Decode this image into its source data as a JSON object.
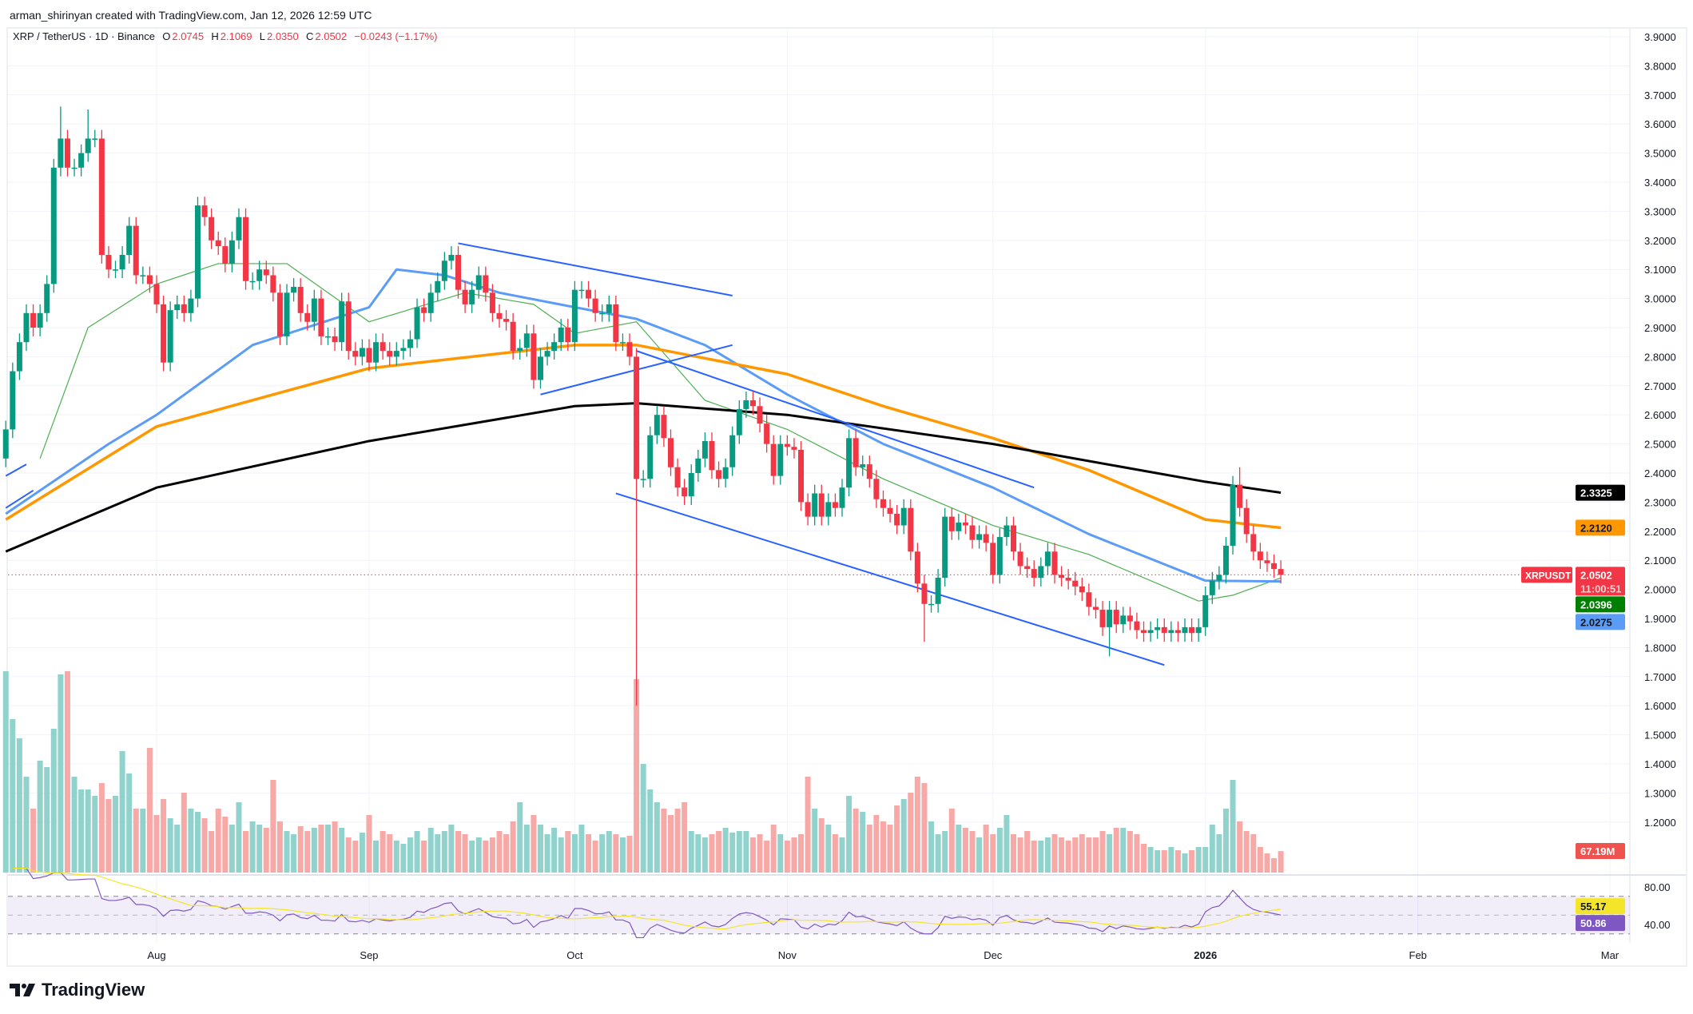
{
  "credit": "arman_shirinyan created with TradingView.com, Jan 12, 2026 12:59 UTC",
  "legend": {
    "symbol": "XRP / TetherUS · 1D · Binance",
    "o_label": "O",
    "o": "2.0745",
    "h_label": "H",
    "h": "2.1069",
    "l_label": "L",
    "l": "2.0350",
    "c_label": "C",
    "c": "2.0502",
    "change": "−0.0243 (−1.17%)"
  },
  "logo": {
    "text": "TradingView",
    "icon": "tradingview-logo-icon"
  },
  "colors": {
    "up": "#089981",
    "down": "#f23645",
    "up_volume": "#92d2cc",
    "down_volume": "#f7a9a7",
    "ma20": "#4caf50",
    "ma50": "#5b9cf6",
    "ma100": "#ff9800",
    "ma200": "#000000",
    "trendline": "#2962ff",
    "rsi": "#7e57c2",
    "rsi_ma": "#f5e52a"
  },
  "chart_data": {
    "type": "candlestick",
    "symbol": "XRPUSDT",
    "ylim": [
      1.15,
      3.95
    ],
    "price_ticks": [
      "1.2000",
      "1.3000",
      "1.4000",
      "1.5000",
      "1.6000",
      "1.7000",
      "1.8000",
      "1.9000",
      "2.0000",
      "2.1000",
      "2.2000",
      "2.3000",
      "2.4000",
      "2.5000",
      "2.6000",
      "2.7000",
      "2.8000",
      "2.9000",
      "3.0000",
      "3.1000",
      "3.2000",
      "3.3000",
      "3.4000",
      "3.5000",
      "3.6000",
      "3.7000",
      "3.8000",
      "3.9000"
    ],
    "time_ticks": [
      {
        "label": "Aug",
        "date": "2025-08-01"
      },
      {
        "label": "Sep",
        "date": "2025-09-01"
      },
      {
        "label": "Oct",
        "date": "2025-10-01"
      },
      {
        "label": "Nov",
        "date": "2025-11-01"
      },
      {
        "label": "Dec",
        "date": "2025-12-01"
      },
      {
        "label": "2026",
        "date": "2026-01-01",
        "bold": true
      },
      {
        "label": "Feb",
        "date": "2026-02-01"
      },
      {
        "label": "Mar",
        "date": "2026-03-01"
      }
    ],
    "closes": [
      {
        "month": "2025-07",
        "from_day": 10,
        "values": [
          2.55,
          2.75,
          2.85,
          2.95,
          2.9,
          2.95,
          3.05,
          3.45,
          3.55,
          3.45,
          3.45,
          3.5,
          3.55,
          3.55,
          3.15,
          3.1,
          3.1,
          3.15,
          3.25,
          3.08,
          3.08,
          3.05
        ]
      },
      {
        "month": "2025-08",
        "from_day": 1,
        "values": [
          2.98,
          2.78,
          2.96,
          2.98,
          2.95,
          3.0,
          3.32,
          3.28,
          3.2,
          3.18,
          3.12,
          3.2,
          3.28,
          3.06,
          3.06,
          3.1,
          3.08,
          3.02,
          2.87,
          3.02,
          3.04,
          2.95,
          2.92,
          3.0,
          2.87,
          2.87,
          2.85,
          2.99,
          2.82,
          2.8,
          2.83
        ]
      },
      {
        "month": "2025-09",
        "from_day": 1,
        "values": [
          2.78,
          2.85,
          2.82,
          2.8,
          2.82,
          2.83,
          2.86,
          2.97,
          2.95,
          3.02,
          3.06,
          3.13,
          3.15,
          3.03,
          2.98,
          3.03,
          3.08,
          3.02,
          2.95,
          2.93,
          2.92,
          2.82,
          2.83,
          2.88,
          2.72,
          2.8,
          2.82,
          2.85,
          2.9,
          2.85
        ]
      },
      {
        "month": "2025-10",
        "from_day": 1,
        "values": [
          3.03,
          3.03,
          3.0,
          2.95,
          2.95,
          2.98,
          2.85,
          2.85,
          2.8,
          2.38,
          2.38,
          2.53,
          2.6,
          2.52,
          2.42,
          2.35,
          2.32,
          2.4,
          2.45,
          2.51,
          2.41,
          2.38,
          2.42,
          2.53,
          2.62,
          2.65,
          2.63,
          2.57,
          2.5,
          2.39,
          2.5
        ]
      },
      {
        "month": "2025-11",
        "from_day": 1,
        "values": [
          2.49,
          2.48,
          2.3,
          2.25,
          2.33,
          2.25,
          2.3,
          2.28,
          2.35,
          2.52,
          2.42,
          2.43,
          2.38,
          2.31,
          2.28,
          2.26,
          2.22,
          2.28,
          2.13,
          2.02,
          1.95,
          1.95,
          2.04,
          2.25,
          2.2,
          2.23,
          2.22,
          2.17,
          2.19,
          2.16
        ]
      },
      {
        "month": "2025-12",
        "from_day": 1,
        "values": [
          2.05,
          2.18,
          2.22,
          2.13,
          2.08,
          2.07,
          2.04,
          2.08,
          2.13,
          2.05,
          2.04,
          2.03,
          2.01,
          1.99,
          1.94,
          1.93,
          1.87,
          1.93,
          1.88,
          1.91,
          1.89,
          1.86,
          1.85,
          1.86,
          1.87,
          1.85,
          1.86,
          1.85,
          1.87,
          1.85,
          1.87
        ]
      },
      {
        "month": "2026-01",
        "from_day": 1,
        "values": [
          1.98,
          2.03,
          2.05,
          2.15,
          2.36,
          2.28,
          2.19,
          2.13,
          2.1,
          2.09,
          2.07,
          2.0502
        ]
      }
    ],
    "first_open": 2.45,
    "wicks": [
      {
        "date": "2025-07-18",
        "high": 3.66
      },
      {
        "date": "2025-07-22",
        "high": 3.65
      },
      {
        "date": "2025-10-10",
        "low": 1.6
      },
      {
        "date": "2025-11-21",
        "low": 1.82
      },
      {
        "date": "2025-12-18",
        "low": 1.77
      },
      {
        "date": "2026-01-06",
        "high": 2.42
      }
    ],
    "volume_millions": [
      {
        "month": "2025-07",
        "from_day": 10,
        "values": [
          630,
          480,
          420,
          300,
          200,
          350,
          330,
          450,
          620,
          630,
          300,
          260,
          260,
          240,
          280,
          230,
          240,
          380,
          310,
          200,
          200,
          390
        ]
      },
      {
        "month": "2025-08",
        "from_day": 1,
        "values": [
          180,
          230,
          170,
          150,
          250,
          200,
          190,
          170,
          130,
          200,
          175,
          150,
          220,
          130,
          160,
          150,
          140,
          290,
          160,
          130,
          120,
          145,
          130,
          140,
          150,
          150,
          160,
          140,
          110,
          100,
          125
        ]
      },
      {
        "month": "2025-09",
        "from_day": 1,
        "values": [
          180,
          100,
          130,
          120,
          100,
          90,
          110,
          130,
          100,
          140,
          120,
          130,
          150,
          130,
          120,
          100,
          110,
          100,
          110,
          130,
          120,
          160,
          220,
          150,
          180,
          150,
          120,
          140,
          110,
          130
        ]
      },
      {
        "month": "2025-10",
        "from_day": 1,
        "values": [
          120,
          150,
          120,
          100,
          120,
          130,
          120,
          110,
          115,
          605,
          340,
          260,
          220,
          200,
          180,
          200,
          220,
          130,
          120,
          110,
          120,
          130,
          140,
          125,
          130,
          130,
          110,
          120,
          100,
          150,
          120
        ]
      },
      {
        "month": "2025-11",
        "from_day": 1,
        "values": [
          100,
          110,
          120,
          300,
          200,
          170,
          150,
          120,
          110,
          240,
          200,
          190,
          150,
          180,
          160,
          150,
          210,
          230,
          250,
          300,
          280,
          160,
          120,
          130,
          200,
          150,
          140,
          130,
          110,
          150
        ]
      },
      {
        "month": "2025-12",
        "from_day": 1,
        "values": [
          120,
          140,
          180,
          120,
          110,
          130,
          100,
          100,
          110,
          120,
          110,
          100,
          110,
          120,
          110,
          110,
          130,
          120,
          140,
          140,
          130,
          120,
          90,
          80,
          70,
          70,
          80,
          70,
          60,
          70,
          80
        ]
      },
      {
        "month": "2026-01",
        "from_day": 1,
        "values": [
          80,
          150,
          120,
          200,
          290,
          160,
          130,
          120,
          80,
          60,
          45,
          67.19
        ]
      }
    ],
    "moving_averages": [
      {
        "key": "ma20",
        "points": [
          [
            "2025-07-15",
            2.45
          ],
          [
            "2025-07-22",
            2.9
          ],
          [
            "2025-08-01",
            3.05
          ],
          [
            "2025-08-10",
            3.12
          ],
          [
            "2025-08-20",
            3.12
          ],
          [
            "2025-09-01",
            2.92
          ],
          [
            "2025-09-15",
            3.02
          ],
          [
            "2025-09-25",
            2.98
          ],
          [
            "2025-10-01",
            2.88
          ],
          [
            "2025-10-10",
            2.92
          ],
          [
            "2025-10-20",
            2.65
          ],
          [
            "2025-11-01",
            2.55
          ],
          [
            "2025-11-15",
            2.38
          ],
          [
            "2025-12-01",
            2.22
          ],
          [
            "2025-12-15",
            2.12
          ],
          [
            "2025-12-31",
            1.96
          ],
          [
            "2026-01-05",
            1.98
          ],
          [
            "2026-01-12",
            2.0396
          ]
        ]
      },
      {
        "key": "ma50",
        "points": [
          [
            "2025-07-10",
            2.26
          ],
          [
            "2025-07-25",
            2.5
          ],
          [
            "2025-08-01",
            2.6
          ],
          [
            "2025-08-15",
            2.84
          ],
          [
            "2025-09-01",
            2.97
          ],
          [
            "2025-09-05",
            3.1
          ],
          [
            "2025-09-12",
            3.08
          ],
          [
            "2025-09-20",
            3.02
          ],
          [
            "2025-10-01",
            2.97
          ],
          [
            "2025-10-10",
            2.93
          ],
          [
            "2025-10-20",
            2.84
          ],
          [
            "2025-11-01",
            2.67
          ],
          [
            "2025-11-15",
            2.5
          ],
          [
            "2025-12-01",
            2.35
          ],
          [
            "2025-12-15",
            2.19
          ],
          [
            "2026-01-01",
            2.03
          ],
          [
            "2026-01-12",
            2.0275
          ]
        ]
      },
      {
        "key": "ma100",
        "points": [
          [
            "2025-07-10",
            2.24
          ],
          [
            "2025-08-01",
            2.56
          ],
          [
            "2025-09-01",
            2.76
          ],
          [
            "2025-10-01",
            2.84
          ],
          [
            "2025-10-10",
            2.84
          ],
          [
            "2025-11-01",
            2.74
          ],
          [
            "2025-11-15",
            2.63
          ],
          [
            "2025-12-01",
            2.52
          ],
          [
            "2025-12-15",
            2.41
          ],
          [
            "2026-01-01",
            2.24
          ],
          [
            "2026-01-12",
            2.212
          ]
        ]
      },
      {
        "key": "ma200",
        "points": [
          [
            "2025-07-10",
            2.13
          ],
          [
            "2025-08-01",
            2.35
          ],
          [
            "2025-09-01",
            2.51
          ],
          [
            "2025-10-01",
            2.63
          ],
          [
            "2025-10-10",
            2.64
          ],
          [
            "2025-11-01",
            2.6
          ],
          [
            "2025-12-01",
            2.5
          ],
          [
            "2026-01-01",
            2.37
          ],
          [
            "2026-01-12",
            2.3325
          ]
        ]
      }
    ],
    "trendlines": [
      [
        [
          "2025-07-10",
          2.39
        ],
        [
          "2025-07-13",
          2.43
        ]
      ],
      [
        [
          "2025-07-10",
          2.28
        ],
        [
          "2025-07-14",
          2.34
        ]
      ],
      [
        [
          "2025-09-14",
          3.19
        ],
        [
          "2025-10-24",
          3.01
        ]
      ],
      [
        [
          "2025-09-26",
          2.67
        ],
        [
          "2025-10-24",
          2.84
        ]
      ],
      [
        [
          "2025-10-10",
          2.82
        ],
        [
          "2025-12-07",
          2.35
        ]
      ],
      [
        [
          "2025-10-07",
          2.33
        ],
        [
          "2025-12-26",
          1.74
        ]
      ]
    ],
    "price_badges": [
      {
        "key": "ma200",
        "value": "2.3325",
        "bg": "#000000",
        "fg": "#ffffff"
      },
      {
        "key": "ma100",
        "value": "2.2120",
        "bg": "#ff9800",
        "fg": "#131722"
      },
      {
        "key": "last",
        "value": "2.0502",
        "countdown": "11:00:51",
        "bg": "#f23645",
        "fg": "#ffffff",
        "symbol_label": "XRPUSDT"
      },
      {
        "key": "ma20",
        "value": "2.0396",
        "bg": "#008000",
        "fg": "#ffffff"
      },
      {
        "key": "ma50",
        "value": "2.0275",
        "bg": "#5b9cf6",
        "fg": "#131722"
      }
    ],
    "volume_badge": {
      "value": "67.19M",
      "bg": "#ef5350"
    },
    "rsi": {
      "period": 14,
      "ticks": [
        "80.00",
        "40.00"
      ],
      "bands": [
        70,
        50,
        30
      ],
      "badges": [
        {
          "value": "55.17",
          "bg": "#f5e52a",
          "fg": "#131722"
        },
        {
          "value": "50.86",
          "bg": "#7e57c2",
          "fg": "#ffffff"
        }
      ]
    }
  }
}
